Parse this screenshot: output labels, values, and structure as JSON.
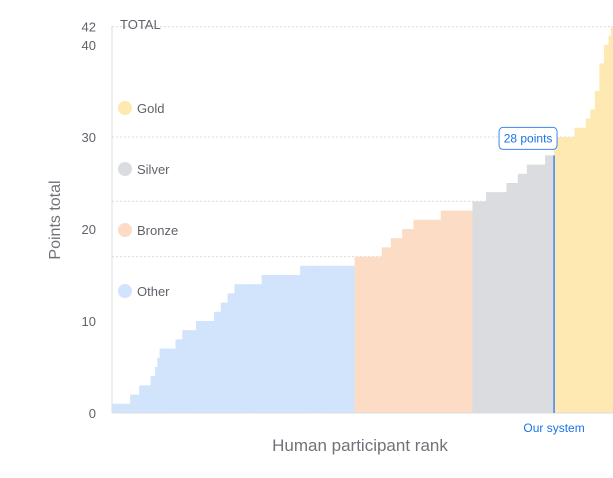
{
  "chart_data": {
    "type": "bar",
    "title": "",
    "xlabel": "Human participant rank",
    "ylabel": "Points total",
    "ylim": [
      0,
      42
    ],
    "y_ticks": [
      0,
      10,
      20,
      30,
      40,
      42
    ],
    "max_label": "TOTAL",
    "grid": "dashed lines at 17, 23, 30 and 42",
    "reference_lines": [
      17,
      23,
      30,
      42
    ],
    "legend_position": "left",
    "series": [
      {
        "name": "Other",
        "color": "#d2e3fc",
        "values": [
          1,
          1,
          1,
          1,
          1,
          1,
          1,
          1,
          2,
          2,
          2,
          2,
          3,
          3,
          3,
          3,
          3,
          4,
          4,
          5,
          6,
          7,
          7,
          7,
          7,
          7,
          7,
          7,
          8,
          8,
          8,
          9,
          9,
          9,
          9,
          9,
          9,
          10,
          10,
          10,
          10,
          10,
          10,
          10,
          10,
          11,
          11,
          11,
          12,
          12,
          12,
          13,
          13,
          13,
          14,
          14,
          14,
          14,
          14,
          14,
          14,
          14,
          14,
          14,
          14,
          14,
          15,
          15,
          15,
          15,
          15,
          15,
          15,
          15,
          15,
          15,
          15,
          15,
          15,
          15,
          15,
          15,
          15,
          16,
          16,
          16,
          16,
          16,
          16,
          16,
          16,
          16,
          16,
          16,
          16,
          16,
          16,
          16,
          16,
          16,
          16,
          16,
          16,
          16,
          16,
          16,
          16
        ]
      },
      {
        "name": "Bronze",
        "color": "#fcdcc5",
        "values": [
          17,
          17,
          17,
          17,
          17,
          17,
          17,
          17,
          17,
          17,
          17,
          17,
          18,
          18,
          18,
          18,
          19,
          19,
          19,
          19,
          19,
          20,
          20,
          20,
          20,
          20,
          21,
          21,
          21,
          21,
          21,
          21,
          21,
          21,
          21,
          21,
          21,
          21,
          22,
          22,
          22,
          22,
          22,
          22,
          22,
          22,
          22,
          22,
          22,
          22,
          22,
          22
        ]
      },
      {
        "name": "Silver",
        "color": "#dadce0",
        "values": [
          23,
          23,
          23,
          23,
          23,
          23,
          24,
          24,
          24,
          24,
          24,
          24,
          24,
          24,
          24,
          25,
          25,
          25,
          25,
          25,
          26,
          26,
          26,
          26,
          27,
          27,
          27,
          27,
          27,
          27,
          27,
          27,
          28,
          28,
          28,
          28
        ]
      },
      {
        "name": "Gold",
        "color": "#fde9b1",
        "values": [
          30,
          30,
          30,
          30,
          30,
          30,
          30,
          30,
          30,
          31,
          31,
          31,
          31,
          31,
          32,
          32,
          33,
          33,
          35,
          35,
          38,
          38,
          40,
          40,
          41,
          42
        ]
      }
    ],
    "highlight": {
      "label": "Our system",
      "value": 28,
      "callout": "28 points",
      "color": "#4285f4"
    }
  }
}
